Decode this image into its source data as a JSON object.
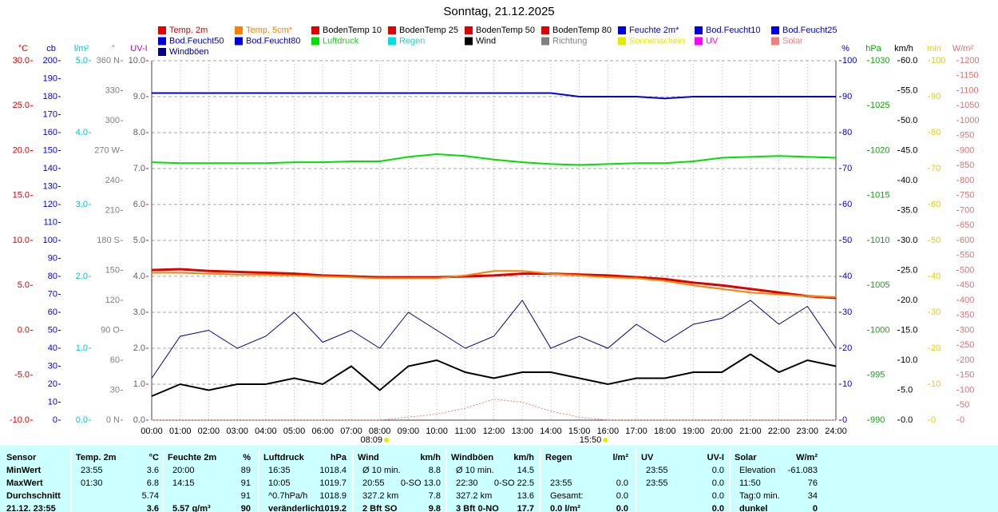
{
  "chart_data": {
    "type": "line",
    "title": "Sonntag, 21.12.2025",
    "x": [
      0,
      1,
      2,
      3,
      4,
      5,
      6,
      7,
      8,
      9,
      10,
      11,
      12,
      13,
      14,
      15,
      16,
      17,
      18,
      19,
      20,
      21,
      22,
      23,
      24
    ],
    "xlim": [
      0,
      24
    ],
    "xticks": [
      {
        "value": 0,
        "label": "00:00"
      },
      {
        "value": 1,
        "label": "01:00"
      },
      {
        "value": 2,
        "label": "02:00"
      },
      {
        "value": 3,
        "label": "03:00"
      },
      {
        "value": 4,
        "label": "04:00"
      },
      {
        "value": 5,
        "label": "05:00"
      },
      {
        "value": 6,
        "label": "06:00"
      },
      {
        "value": 7,
        "label": "07:00"
      },
      {
        "value": 8,
        "label": "08:00"
      },
      {
        "value": 9,
        "label": "09:00"
      },
      {
        "value": 10,
        "label": "10:00"
      },
      {
        "value": 11,
        "label": "11:00"
      },
      {
        "value": 12,
        "label": "12:00"
      },
      {
        "value": 13,
        "label": "13:00"
      },
      {
        "value": 14,
        "label": "14:00"
      },
      {
        "value": 15,
        "label": "15:00"
      },
      {
        "value": 16,
        "label": "16:00"
      },
      {
        "value": 17,
        "label": "17:00"
      },
      {
        "value": 18,
        "label": "18:00"
      },
      {
        "value": 19,
        "label": "19:00"
      },
      {
        "value": 20,
        "label": "20:00"
      },
      {
        "value": 21,
        "label": "21:00"
      },
      {
        "value": 22,
        "label": "22:00"
      },
      {
        "value": 23,
        "label": "23:00"
      },
      {
        "value": 24,
        "label": "24:00"
      }
    ],
    "axes": [
      {
        "id": "C",
        "label": "°C",
        "color": "#e00000",
        "side": "left",
        "lim": [
          -10,
          30
        ],
        "ticks": [
          {
            "value": -10,
            "label": "-10.0"
          },
          {
            "value": -5,
            "label": "-5.0"
          },
          {
            "value": 0,
            "label": "0.0"
          },
          {
            "value": 5,
            "label": "5.0"
          },
          {
            "value": 10,
            "label": "10.0"
          },
          {
            "value": 15,
            "label": "15.0"
          },
          {
            "value": 20,
            "label": "20.0"
          },
          {
            "value": 25,
            "label": "25.0"
          },
          {
            "value": 30,
            "label": "30.0"
          }
        ]
      },
      {
        "id": "cb",
        "label": "cb",
        "color": "#0000e0",
        "side": "left",
        "lim": [
          0,
          200
        ],
        "ticks": [
          0,
          10,
          20,
          30,
          40,
          50,
          60,
          70,
          80,
          90,
          100,
          110,
          120,
          130,
          140,
          150,
          160,
          170,
          180,
          190,
          200
        ]
      },
      {
        "id": "rain",
        "label": "l/m²",
        "color": "#00c8c8",
        "side": "left",
        "lim": [
          0,
          5
        ],
        "ticks": [
          {
            "value": 0,
            "label": "0.0"
          },
          {
            "value": 1,
            "label": "1.0"
          },
          {
            "value": 2,
            "label": "2.0"
          },
          {
            "value": 3,
            "label": "3.0"
          },
          {
            "value": 4,
            "label": "4.0"
          },
          {
            "value": 5,
            "label": "5.0"
          }
        ]
      },
      {
        "id": "deg",
        "label": "°",
        "color": "#808080",
        "side": "left",
        "lim": [
          0,
          360
        ],
        "ticks": [
          {
            "value": 0,
            "label": "0 N"
          },
          {
            "value": 30,
            "label": "30"
          },
          {
            "value": 60,
            "label": "60"
          },
          {
            "value": 90,
            "label": "90 O"
          },
          {
            "value": 120,
            "label": "120"
          },
          {
            "value": 150,
            "label": "150"
          },
          {
            "value": 180,
            "label": "180 S"
          },
          {
            "value": 210,
            "label": "210"
          },
          {
            "value": 240,
            "label": "240"
          },
          {
            "value": 270,
            "label": "270 W"
          },
          {
            "value": 300,
            "label": "300"
          },
          {
            "value": 330,
            "label": "330"
          },
          {
            "value": 360,
            "label": "360 N"
          }
        ]
      },
      {
        "id": "uv",
        "label": "UV-I",
        "color": "#c000c0",
        "tickcolor": "#606060",
        "side": "left",
        "lim": [
          0,
          10
        ],
        "grid": true,
        "ticks": [
          {
            "value": 0,
            "label": "0.0"
          },
          {
            "value": 1,
            "label": "1.0"
          },
          {
            "value": 2,
            "label": "2.0"
          },
          {
            "value": 3,
            "label": "3.0"
          },
          {
            "value": 4,
            "label": "4.0"
          },
          {
            "value": 5,
            "label": "5.0"
          },
          {
            "value": 6,
            "label": "6.0"
          },
          {
            "value": 7,
            "label": "7.0"
          },
          {
            "value": 8,
            "label": "8.0"
          },
          {
            "value": 9,
            "label": "9.0"
          },
          {
            "value": 10,
            "label": "10.0"
          }
        ]
      },
      {
        "id": "pct",
        "label": "%",
        "color": "#0000e0",
        "side": "right",
        "lim": [
          0,
          100
        ],
        "ticks": [
          0,
          10,
          20,
          30,
          40,
          50,
          60,
          70,
          80,
          90,
          100
        ]
      },
      {
        "id": "hpa",
        "label": "hPa",
        "color": "#00b000",
        "side": "right",
        "lim": [
          990,
          1030
        ],
        "ticks": [
          990,
          995,
          1000,
          1005,
          1010,
          1015,
          1020,
          1025,
          1030
        ]
      },
      {
        "id": "kmh",
        "label": "km/h",
        "color": "#000000",
        "side": "right",
        "lim": [
          0,
          60
        ],
        "ticks": [
          {
            "value": 0,
            "label": "0.0"
          },
          {
            "value": 5,
            "label": "5.0"
          },
          {
            "value": 10,
            "label": "10.0"
          },
          {
            "value": 15,
            "label": "15.0"
          },
          {
            "value": 20,
            "label": "20.0"
          },
          {
            "value": 25,
            "label": "25.0"
          },
          {
            "value": 30,
            "label": "30.0"
          },
          {
            "value": 35,
            "label": "35.0"
          },
          {
            "value": 40,
            "label": "40.0"
          },
          {
            "value": 45,
            "label": "45.0"
          },
          {
            "value": 50,
            "label": "50.0"
          },
          {
            "value": 55,
            "label": "55.0"
          },
          {
            "value": 60,
            "label": "60.0"
          }
        ]
      },
      {
        "id": "min",
        "label": "min",
        "color": "#e0d000",
        "side": "right",
        "lim": [
          0,
          100
        ],
        "ticks": [
          0,
          10,
          20,
          30,
          40,
          50,
          60,
          70,
          80,
          90,
          100
        ]
      },
      {
        "id": "wm",
        "label": "W/m²",
        "color": "#e07070",
        "side": "right",
        "lim": [
          0,
          1200
        ],
        "ticks": [
          0,
          50,
          100,
          150,
          200,
          250,
          300,
          350,
          400,
          450,
          500,
          550,
          600,
          650,
          700,
          750,
          800,
          850,
          900,
          950,
          1000,
          1050,
          1100,
          1150,
          1200
        ]
      }
    ],
    "series": [
      {
        "name": "Temp. 2m",
        "color": "#e00000",
        "axis": "C",
        "width": 3,
        "values": [
          6.7,
          6.8,
          6.6,
          6.5,
          6.4,
          6.3,
          6.1,
          6.0,
          5.9,
          5.9,
          5.9,
          6.0,
          6.1,
          6.3,
          6.3,
          6.2,
          6.1,
          5.9,
          5.7,
          5.3,
          5.0,
          4.6,
          4.2,
          3.8,
          3.6
        ]
      },
      {
        "name": "Temp. 5cm*",
        "color": "#ff8000",
        "axis": "C",
        "width": 2,
        "values": [
          6.4,
          6.4,
          6.3,
          6.2,
          6.2,
          6.1,
          6.0,
          5.9,
          5.8,
          5.8,
          5.8,
          6.1,
          6.6,
          6.6,
          6.3,
          6.1,
          5.9,
          5.8,
          5.5,
          5.0,
          4.6,
          4.2,
          4.0,
          3.8,
          3.7
        ]
      },
      {
        "name": "BodenTemp 10",
        "color": "#e00000"
      },
      {
        "name": "BodenTemp 25",
        "color": "#e00000"
      },
      {
        "name": "BodenTemp 50",
        "color": "#e00000"
      },
      {
        "name": "BodenTemp 80",
        "color": "#e00000"
      },
      {
        "name": "Feuchte 2m*",
        "color": "#0000e0",
        "axis": "pct",
        "width": 2,
        "values": [
          91,
          91,
          91,
          91,
          91,
          91,
          91,
          91,
          91,
          91,
          91,
          91,
          91,
          91,
          91,
          90,
          90,
          90,
          89.5,
          90,
          90,
          90,
          90,
          90,
          90
        ]
      },
      {
        "name": "Bod.Feucht10",
        "color": "#0000e0"
      },
      {
        "name": "Bod.Feucht25",
        "color": "#0000e0"
      },
      {
        "name": "Bod.Feucht50",
        "color": "#0000e0"
      },
      {
        "name": "Bod.Feucht80",
        "color": "#0000e0"
      },
      {
        "name": "Luftdruck",
        "color": "#00e000",
        "axis": "hpa",
        "width": 2,
        "values": [
          1018.7,
          1018.6,
          1018.6,
          1018.6,
          1018.6,
          1018.7,
          1018.7,
          1018.8,
          1018.8,
          1019.3,
          1019.6,
          1019.4,
          1019.0,
          1018.7,
          1018.5,
          1018.4,
          1018.5,
          1018.6,
          1018.6,
          1018.8,
          1019.2,
          1019.3,
          1019.4,
          1019.3,
          1019.2
        ]
      },
      {
        "name": "Regen",
        "color": "#00e0e0"
      },
      {
        "name": "Wind",
        "color": "#000000",
        "axis": "kmh",
        "width": 2,
        "values": [
          4,
          6,
          5,
          6,
          6,
          7,
          6,
          9,
          5,
          9,
          10,
          8,
          7,
          8,
          8,
          7,
          6,
          7,
          7,
          8,
          8,
          11,
          8,
          10,
          9
        ]
      },
      {
        "name": "Richtung",
        "color": "#808080"
      },
      {
        "name": "Sonnenschein",
        "color": "#e8e800"
      },
      {
        "name": "UV",
        "color": "#ff00ff"
      },
      {
        "name": "Solar",
        "color": "#f08080",
        "axis": "wm",
        "width": 1,
        "dash": "2 2",
        "values": [
          0,
          0,
          0,
          0,
          0,
          0,
          0,
          0,
          0,
          10,
          20,
          40,
          70,
          60,
          30,
          10,
          0,
          0,
          0,
          0,
          0,
          0,
          0,
          0,
          0
        ]
      },
      {
        "name": "Windböen",
        "color": "#000080",
        "axis": "kmh",
        "width": 1,
        "values": [
          7,
          14,
          15,
          12,
          14,
          18,
          13,
          15,
          12,
          18,
          15,
          12,
          14,
          20,
          12,
          14,
          12,
          16,
          13,
          16,
          17,
          20,
          16,
          19,
          12
        ]
      }
    ],
    "sun": [
      {
        "x": 8.15,
        "label": "08:09"
      },
      {
        "x": 15.83,
        "label": "15:50"
      }
    ]
  },
  "table": {
    "header": {
      "label": "Sensor",
      "groups": [
        {
          "name": "Temp. 2m",
          "unit": "°C"
        },
        {
          "name": "Feuchte 2m",
          "unit": "%"
        },
        {
          "name": "Luftdruck",
          "unit": "hPa"
        },
        {
          "name": "Wind",
          "unit": "km/h"
        },
        {
          "name": "Windböen",
          "unit": "km/h"
        },
        {
          "name": "Regen",
          "unit": "l/m²"
        },
        {
          "name": "UV",
          "unit": "UV-I"
        },
        {
          "name": "Solar",
          "unit": "W/m²"
        }
      ]
    },
    "rows": [
      {
        "label": "MinWert",
        "cells": [
          {
            "l": "23:55",
            "r": "3.6"
          },
          {
            "l": "20:00",
            "r": "89"
          },
          {
            "l": "16:35",
            "r": "1018.4"
          },
          {
            "l": "Ø 10 min.",
            "r": "8.8"
          },
          {
            "l": "Ø 10 min.",
            "r": "14.5"
          },
          {},
          {
            "l": "23:55",
            "r": "0.0"
          },
          {
            "l": "Elevation",
            "r": "-61.083"
          }
        ]
      },
      {
        "label": "MaxWert",
        "cells": [
          {
            "l": "01:30",
            "r": "6.8"
          },
          {
            "l": "14:15",
            "r": "91"
          },
          {
            "l": "10:05",
            "r": "1019.7"
          },
          {
            "l": "20:55",
            "r": "0-SO 13.0"
          },
          {
            "l": "22:30",
            "r": "0-SO 22.5"
          },
          {
            "l": "23:55",
            "r": "0.0"
          },
          {
            "l": "23:55",
            "r": "0.0"
          },
          {
            "l": "11:50",
            "r": "76"
          }
        ]
      },
      {
        "label": "Durchschnitt",
        "cells": [
          {
            "r": "5.74"
          },
          {
            "r": "91"
          },
          {
            "l": "^0.7hPa/h",
            "r": "1018.9"
          },
          {
            "l": "327.2 km",
            "r": "7.8"
          },
          {
            "l": "327.2 km",
            "r": "13.6"
          },
          {
            "l": "Gesamt:",
            "r": "0.0"
          },
          {
            "r": "0.0"
          },
          {
            "l": "Tag:0 min.",
            "r": "34"
          }
        ]
      },
      {
        "label": "21.12. 23:55",
        "bold": true,
        "cells": [
          {
            "r": "3.6"
          },
          {
            "l": "5.57 g/m³",
            "r": "90"
          },
          {
            "l": "veränderlich",
            "r": "1019.2"
          },
          {
            "l": "2 Bft SO",
            "r": "9.8"
          },
          {
            "l": "3 Bft 0-NO",
            "r": "17.7"
          },
          {
            "l": "0.0 l/m²",
            "r": "0.0"
          },
          {
            "r": "0.0"
          },
          {
            "l": "dunkel",
            "r": "0"
          }
        ]
      }
    ]
  }
}
